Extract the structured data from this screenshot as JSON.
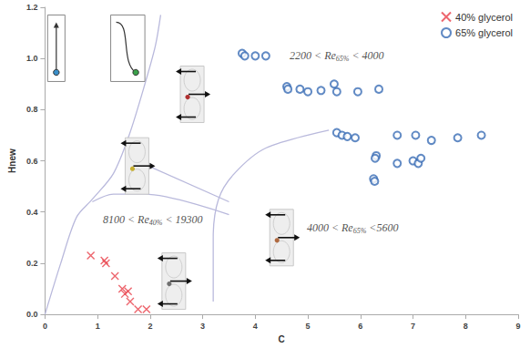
{
  "chart_data": {
    "type": "scatter",
    "xlabel": "C",
    "ylabel": "Hnew",
    "xlim": [
      0,
      9
    ],
    "xticks": [
      0,
      1,
      2,
      3,
      4,
      5,
      6,
      7,
      8,
      9
    ],
    "ylim": [
      0,
      1.2
    ],
    "yticks": [
      {
        "value": 0,
        "label": "0.0"
      },
      0.2,
      0.4,
      0.6,
      0.8,
      {
        "value": 1,
        "label": "1.0"
      },
      1.2
    ],
    "grid": false,
    "legend": "top-right",
    "series": [
      {
        "name": "40% glycerol",
        "color": "#e8404a",
        "marker": "x",
        "x": [
          0.87,
          1.13,
          1.16,
          1.33,
          1.47,
          1.52,
          1.58,
          1.62,
          1.77,
          1.93
        ],
        "y": [
          0.23,
          0.21,
          0.2,
          0.15,
          0.1,
          0.08,
          0.09,
          0.05,
          0.02,
          0.02
        ]
      },
      {
        "name": "65% glycerol",
        "color": "#3a6db5",
        "marker": "o",
        "x": [
          3.75,
          3.8,
          4.0,
          4.2,
          4.6,
          4.62,
          4.85,
          5.0,
          5.25,
          5.5,
          5.55,
          5.95,
          6.35,
          5.55,
          5.65,
          5.75,
          5.9,
          6.7,
          7.05,
          7.35,
          7.85,
          8.3,
          6.3,
          6.28,
          6.25,
          6.27,
          6.7,
          7.0,
          7.1,
          7.15
        ],
        "y": [
          1.02,
          1.01,
          1.01,
          1.01,
          0.89,
          0.88,
          0.88,
          0.87,
          0.875,
          0.9,
          0.87,
          0.87,
          0.88,
          0.71,
          0.7,
          0.695,
          0.69,
          0.7,
          0.7,
          0.68,
          0.69,
          0.7,
          0.62,
          0.61,
          0.53,
          0.52,
          0.59,
          0.6,
          0.59,
          0.61
        ]
      }
    ],
    "boundaries": [
      {
        "color": "#b9b9dc",
        "x": [
          0,
          0.3,
          0.6,
          0.9,
          1.3,
          1.6,
          1.9,
          2.1,
          2.2
        ],
        "y": [
          0,
          0.2,
          0.38,
          0.45,
          0.55,
          0.7,
          0.9,
          1.05,
          1.17
        ]
      },
      {
        "color": "#b9b9dc",
        "x": [
          0.9,
          1.3,
          1.9,
          3.5
        ],
        "y": [
          0.44,
          0.47,
          0.47,
          0.39
        ]
      },
      {
        "color": "#b9b9dc",
        "x": [
          1.75,
          3.5
        ],
        "y": [
          0.6,
          0.44
        ]
      },
      {
        "color": "#b9b9dc",
        "x": [
          3.2,
          3.2,
          3.3,
          3.6,
          4.2,
          5.4
        ],
        "y": [
          0.05,
          0.3,
          0.45,
          0.55,
          0.65,
          0.72
        ]
      }
    ],
    "annotations": [
      {
        "text": "2200 < Re65% < 4000",
        "x": 5.55,
        "y": 1.01
      },
      {
        "text": "4000 < Re65% <5600",
        "x": 5.85,
        "y": 0.34
      },
      {
        "text": "8100 < Re40% < 19300",
        "x": 2.05,
        "y": 0.37
      }
    ]
  }
}
